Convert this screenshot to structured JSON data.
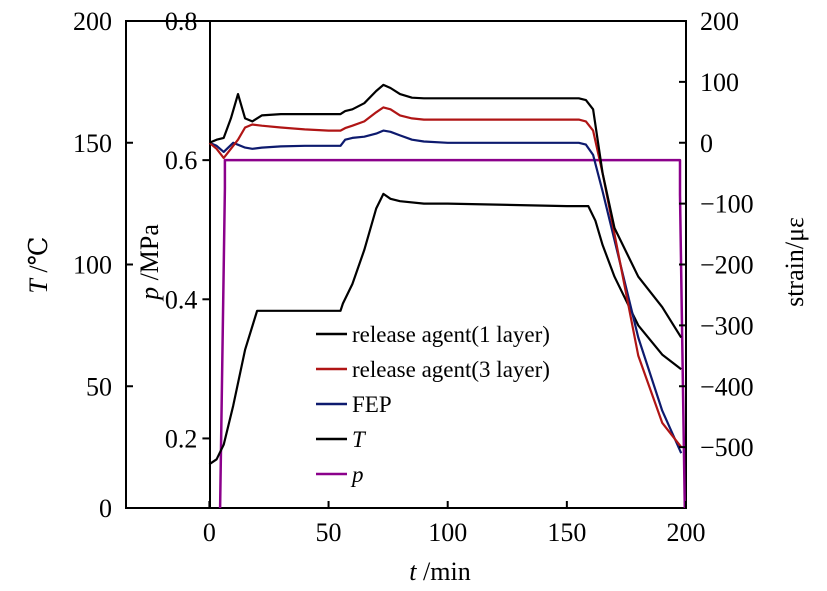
{
  "chart_data": {
    "type": "line",
    "x_axis": {
      "label_var": "t",
      "label_unit": " /min",
      "range": [
        -35,
        200
      ],
      "ticks": [
        0,
        50,
        100,
        150,
        200
      ]
    },
    "y_axis_T": {
      "label_var": "T",
      "label_unit": " /℃",
      "range": [
        0,
        200
      ],
      "ticks": [
        0,
        50,
        100,
        150,
        200
      ]
    },
    "y_axis_p": {
      "label_var": "p",
      "label_unit": " /MPa",
      "range": [
        0.1,
        0.8
      ],
      "ticks": [
        0.2,
        0.4,
        0.6,
        0.8
      ],
      "tick_labels": [
        "0.2",
        "0.4",
        "0.6",
        "0.8"
      ]
    },
    "y_axis_strain": {
      "label": "strain/με",
      "range": [
        -600,
        200
      ],
      "ticks": [
        -500,
        -400,
        -300,
        -200,
        -100,
        0,
        100,
        200
      ],
      "tick_labels": [
        "−500",
        "−400",
        "−300",
        "−200",
        "−100",
        "0",
        "100",
        "200"
      ]
    },
    "series": [
      {
        "name": "release agent(1 layer)",
        "axis": "strain",
        "color": "#000000",
        "x": [
          0,
          3,
          6,
          9,
          12,
          15,
          18,
          22,
          30,
          40,
          50,
          55,
          57,
          60,
          65,
          70,
          73,
          76,
          80,
          85,
          90,
          100,
          120,
          140,
          155,
          158,
          161,
          165,
          170,
          180,
          190,
          198
        ],
        "y": [
          0,
          5,
          8,
          40,
          80,
          40,
          35,
          45,
          47,
          47,
          47,
          47,
          52,
          55,
          65,
          85,
          95,
          90,
          80,
          74,
          73,
          73,
          73,
          73,
          73,
          70,
          55,
          -50,
          -140,
          -220,
          -270,
          -320
        ]
      },
      {
        "name": "release agent(3 layer)",
        "axis": "strain",
        "color": "#b01515",
        "x": [
          0,
          3,
          6,
          9,
          12,
          15,
          18,
          22,
          30,
          40,
          50,
          55,
          57,
          60,
          65,
          70,
          73,
          76,
          80,
          85,
          90,
          100,
          120,
          140,
          155,
          158,
          161,
          165,
          170,
          180,
          190,
          198
        ],
        "y": [
          0,
          -10,
          -25,
          -10,
          5,
          25,
          30,
          28,
          25,
          22,
          20,
          20,
          24,
          28,
          35,
          50,
          58,
          55,
          45,
          40,
          38,
          38,
          38,
          38,
          38,
          35,
          20,
          -50,
          -150,
          -350,
          -460,
          -500
        ]
      },
      {
        "name": "FEP",
        "axis": "strain",
        "color": "#0d1a6e",
        "x": [
          0,
          3,
          6,
          10,
          15,
          18,
          22,
          30,
          40,
          50,
          55,
          57,
          60,
          65,
          70,
          73,
          76,
          80,
          85,
          90,
          100,
          120,
          140,
          155,
          158,
          161,
          165,
          170,
          180,
          190,
          198
        ],
        "y": [
          0,
          -5,
          -15,
          0,
          -8,
          -10,
          -8,
          -6,
          -5,
          -5,
          -5,
          5,
          8,
          10,
          15,
          20,
          18,
          12,
          5,
          2,
          0,
          0,
          0,
          0,
          -3,
          -20,
          -80,
          -160,
          -320,
          -440,
          -510
        ]
      },
      {
        "name": "T",
        "axis": "T",
        "color": "#000000",
        "x": [
          0,
          3,
          6,
          10,
          15,
          20,
          50,
          55,
          56,
          60,
          65,
          70,
          73,
          76,
          80,
          90,
          100,
          150,
          159,
          162,
          165,
          170,
          180,
          190,
          198
        ],
        "y": [
          18,
          20,
          26,
          42,
          65,
          81,
          81,
          81,
          84,
          92,
          106,
          123,
          129,
          127,
          126,
          125,
          125,
          124,
          124,
          118,
          108,
          95,
          75,
          63,
          57
        ]
      },
      {
        "name": "p",
        "axis": "p",
        "color": "#8b008b",
        "x": [
          4.5,
          6.5,
          6.5,
          197.5,
          197.5,
          199.5
        ],
        "y": [
          0.1,
          0.56,
          0.6,
          0.6,
          0.55,
          0.1
        ]
      }
    ],
    "legend_location": "center"
  }
}
